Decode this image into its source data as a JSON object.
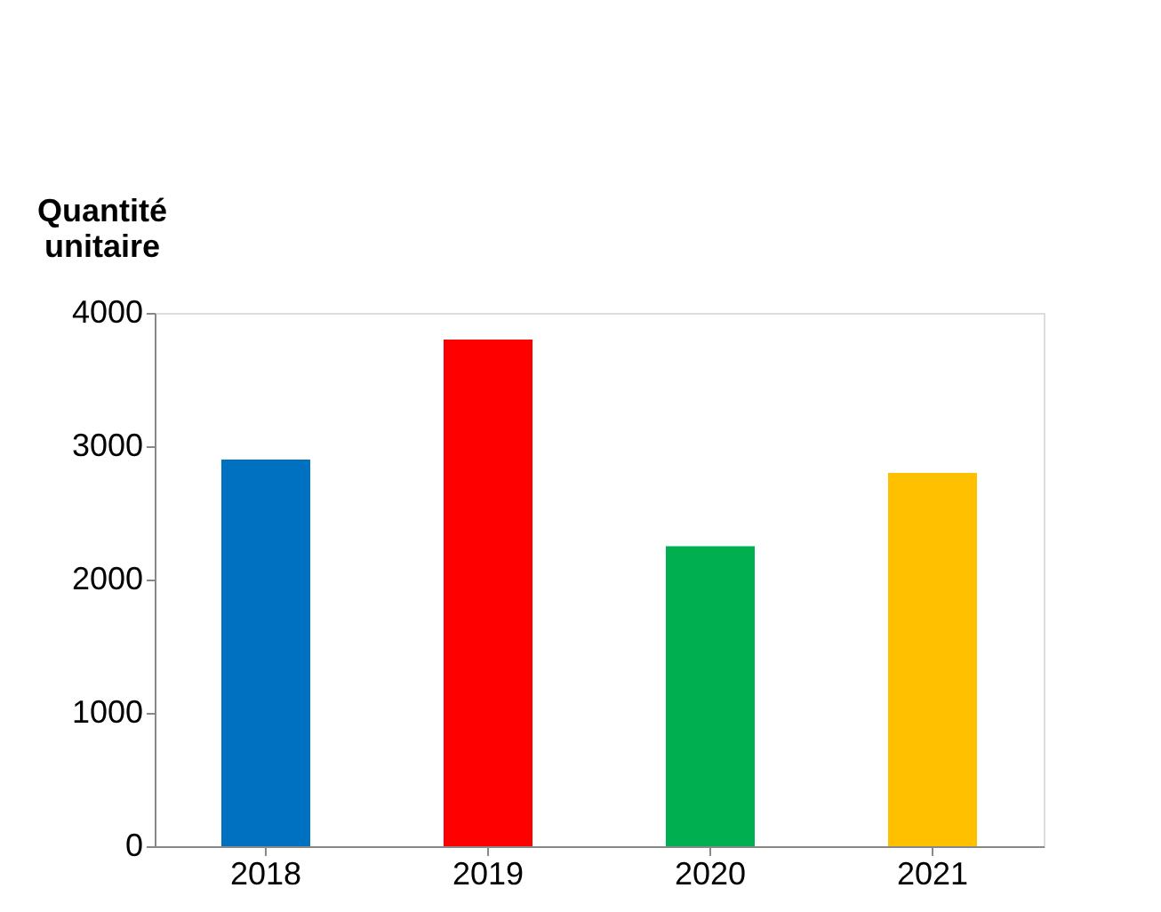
{
  "chart_data": {
    "type": "bar",
    "ylabel": "Quantité\nunitaire",
    "categories": [
      "2018",
      "2019",
      "2020",
      "2021"
    ],
    "values": [
      2900,
      3800,
      2250,
      2800
    ],
    "colors": [
      "#0070c0",
      "#ff0000",
      "#00b050",
      "#ffc000"
    ],
    "ylim": [
      0,
      4000
    ],
    "yticks": [
      0,
      1000,
      2000,
      3000,
      4000
    ],
    "grid": false
  }
}
